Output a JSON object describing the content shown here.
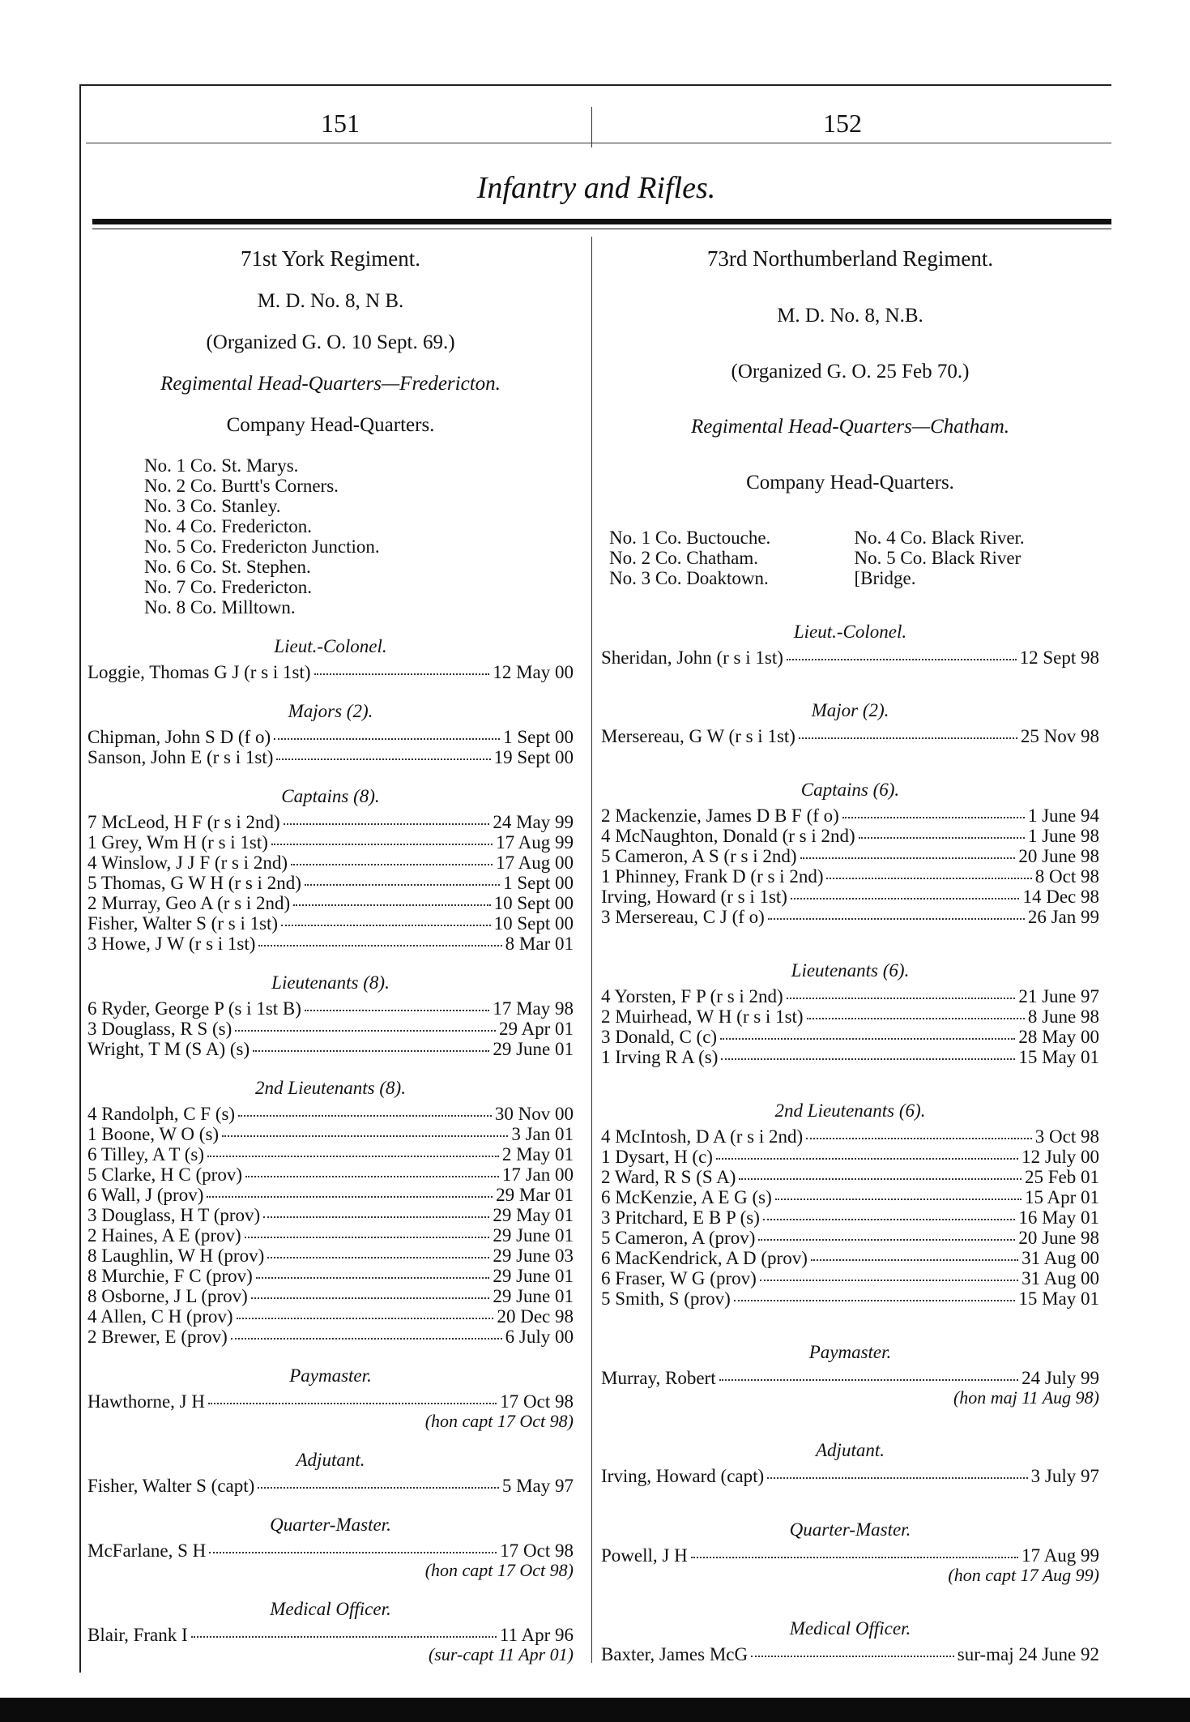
{
  "header": {
    "page_left": "151",
    "page_right": "152",
    "title": "Infantry and Rifles."
  },
  "columns": [
    {
      "regiment": "71st York Regiment.",
      "district": "M. D. No. 8, N B.",
      "organized": "(Organized G. O. 10 Sept. 69.)",
      "headquarters": "Regimental Head-Quarters—Fredericton.",
      "companies_heading": "Company Head-Quarters.",
      "companies": [
        "No. 1 Co. St. Marys.",
        "No. 2 Co. Burtt's Corners.",
        "No. 3 Co. Stanley.",
        "No. 4 Co. Fredericton.",
        "No. 5 Co. Fredericton Junction.",
        "No. 6 Co. St. Stephen.",
        "No. 7 Co. Fredericton.",
        "No. 8 Co. Milltown."
      ],
      "sections": [
        {
          "heading": "Lieut.-Colonel.",
          "entries": [
            {
              "name": "Loggie, Thomas G J (r s i 1st)",
              "date": "12 May 00"
            }
          ]
        },
        {
          "heading": "Majors (2).",
          "entries": [
            {
              "name": "Chipman, John S D (f o)",
              "date": "1 Sept 00"
            },
            {
              "name": "Sanson, John E (r s i 1st)",
              "date": "19 Sept 00"
            }
          ]
        },
        {
          "heading": "Captains (8).",
          "entries": [
            {
              "name": "7 McLeod, H F (r s i 2nd)",
              "date": "24 May 99"
            },
            {
              "name": "1 Grey, Wm H (r s i 1st)",
              "date": "17 Aug 99"
            },
            {
              "name": "4 Winslow, J J F (r s i 2nd)",
              "date": "17 Aug 00"
            },
            {
              "name": "5 Thomas, G W H (r s i 2nd)",
              "date": "1 Sept 00"
            },
            {
              "name": "2 Murray, Geo A (r s i 2nd)",
              "date": "10 Sept 00"
            },
            {
              "name": "Fisher, Walter S (r s i 1st)",
              "date": "10 Sept 00"
            },
            {
              "name": "3 Howe, J W (r s i 1st)",
              "date": "8 Mar 01"
            }
          ]
        },
        {
          "heading": "Lieutenants (8).",
          "entries": [
            {
              "name": "6 Ryder, George P (s i 1st B)",
              "date": "17 May 98"
            },
            {
              "name": "3 Douglass, R S (s)",
              "date": "29 Apr 01"
            },
            {
              "name": "Wright, T M (S A) (s)",
              "date": "29 June 01"
            }
          ]
        },
        {
          "heading": "2nd Lieutenants (8).",
          "entries": [
            {
              "name": "4 Randolph, C F (s)",
              "date": "30 Nov 00"
            },
            {
              "name": "1 Boone, W O (s)",
              "date": "3 Jan 01"
            },
            {
              "name": "6 Tilley, A T (s)",
              "date": "2 May 01"
            },
            {
              "name": "5 Clarke, H C (prov)",
              "date": "17 Jan 00"
            },
            {
              "name": "6 Wall, J (prov)",
              "date": "29 Mar 01"
            },
            {
              "name": "3 Douglass, H T (prov)",
              "date": "29 May 01"
            },
            {
              "name": "2 Haines, A E (prov)",
              "date": "29 June 01"
            },
            {
              "name": "8 Laughlin, W H (prov)",
              "date": "29 June 03"
            },
            {
              "name": "8 Murchie, F C (prov)",
              "date": "29 June 01"
            },
            {
              "name": "8 Osborne, J L (prov)",
              "date": "29 June 01"
            },
            {
              "name": "4 Allen, C H (prov)",
              "date": "20 Dec 98"
            },
            {
              "name": "2 Brewer, E (prov)",
              "date": "6 July 00"
            }
          ]
        },
        {
          "heading": "Paymaster.",
          "entries": [
            {
              "name": "Hawthorne, J H",
              "date": "17 Oct 98",
              "note": "(hon capt 17 Oct 98)"
            }
          ]
        },
        {
          "heading": "Adjutant.",
          "entries": [
            {
              "name": "Fisher, Walter S (capt)",
              "date": "5 May 97"
            }
          ]
        },
        {
          "heading": "Quarter-Master.",
          "entries": [
            {
              "name": "McFarlane, S H",
              "date": "17 Oct 98",
              "note": "(hon capt 17 Oct 98)"
            }
          ]
        },
        {
          "heading": "Medical Officer.",
          "entries": [
            {
              "name": "Blair, Frank I",
              "date": "11 Apr 96",
              "note": "(sur-capt 11 Apr 01)"
            }
          ]
        }
      ]
    },
    {
      "regiment": "73rd Northumberland Regiment.",
      "district": "M. D. No. 8, N.B.",
      "organized": "(Organized G. O. 25 Feb 70.)",
      "headquarters": "Regimental Head-Quarters—Chatham.",
      "companies_heading": "Company Head-Quarters.",
      "companies": [
        "No. 1 Co. Buctouche.",
        "No. 4 Co. Black River.",
        "No. 2 Co. Chatham.",
        "No. 5 Co. Black River",
        "No. 3 Co. Doaktown.",
        "[Bridge."
      ],
      "sections": [
        {
          "heading": "Lieut.-Colonel.",
          "entries": [
            {
              "name": "Sheridan, John (r s i 1st)",
              "date": "12 Sept 98"
            }
          ]
        },
        {
          "heading": "Major (2).",
          "entries": [
            {
              "name": "Mersereau, G W (r s i 1st)",
              "date": "25 Nov 98"
            }
          ]
        },
        {
          "heading": "Captains (6).",
          "entries": [
            {
              "name": "2 Mackenzie, James D B F (f o)",
              "date": "1 June 94"
            },
            {
              "name": "4 McNaughton, Donald (r s i 2nd)",
              "date": "1 June 98"
            },
            {
              "name": "5 Cameron, A S (r s i 2nd)",
              "date": "20 June 98"
            },
            {
              "name": "1 Phinney, Frank D (r s i 2nd)",
              "date": "8 Oct 98"
            },
            {
              "name": "Irving, Howard (r s i 1st)",
              "date": "14 Dec 98"
            },
            {
              "name": "3 Mersereau, C J (f o)",
              "date": "26 Jan 99"
            }
          ]
        },
        {
          "heading": "Lieutenants (6).",
          "entries": [
            {
              "name": "4 Yorsten, F P (r s i 2nd)",
              "date": "21 June 97"
            },
            {
              "name": "2 Muirhead, W H (r s i 1st)",
              "date": "8 June 98"
            },
            {
              "name": "3 Donald, C (c)",
              "date": "28 May 00"
            },
            {
              "name": "1 Irving R A (s)",
              "date": "15 May 01"
            }
          ]
        },
        {
          "heading": "2nd Lieutenants (6).",
          "entries": [
            {
              "name": "4 McIntosh, D A (r s i 2nd)",
              "date": "3 Oct 98"
            },
            {
              "name": "1 Dysart, H (c)",
              "date": "12 July 00"
            },
            {
              "name": "2 Ward, R S (S A)",
              "date": "25 Feb 01"
            },
            {
              "name": "6 McKenzie, A E G (s)",
              "date": "15 Apr 01"
            },
            {
              "name": "3 Pritchard, E B P (s)",
              "date": "16 May 01"
            },
            {
              "name": "5 Cameron, A (prov)",
              "date": "20 June 98"
            },
            {
              "name": "6 MacKendrick, A D (prov)",
              "date": "31 Aug 00"
            },
            {
              "name": "6 Fraser, W G (prov)",
              "date": "31 Aug 00"
            },
            {
              "name": "5 Smith, S (prov)",
              "date": "15 May 01"
            }
          ]
        },
        {
          "heading": "Paymaster.",
          "entries": [
            {
              "name": "Murray, Robert",
              "date": "24 July 99",
              "note": "(hon maj 11 Aug 98)"
            }
          ]
        },
        {
          "heading": "Adjutant.",
          "entries": [
            {
              "name": "Irving, Howard (capt)",
              "date": "3 July 97"
            }
          ]
        },
        {
          "heading": "Quarter-Master.",
          "entries": [
            {
              "name": "Powell, J H",
              "date": "17 Aug 99",
              "note": "(hon capt 17 Aug 99)"
            }
          ]
        },
        {
          "heading": "Medical Officer.",
          "entries": [
            {
              "name": "Baxter, James McG",
              "date": "sur-maj 24 June 92"
            }
          ]
        }
      ]
    }
  ]
}
